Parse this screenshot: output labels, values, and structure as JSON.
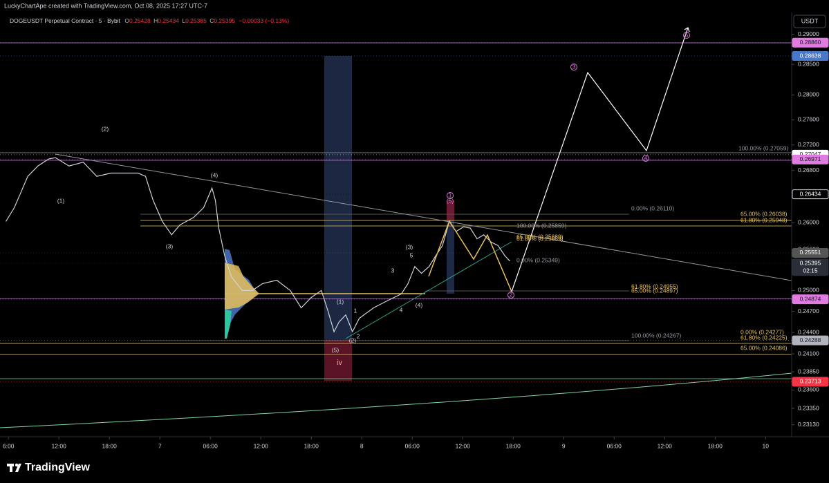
{
  "header": {
    "credit": "LuckyChartApe created with TradingView.com, Oct 08, 2025 17:27 UTC-7",
    "symbol": "DOGEUSDT Perpetual Contract · 5 · Bybit",
    "ohlc": [
      {
        "key": "O",
        "value": "0.25428"
      },
      {
        "key": "H",
        "value": "0.25434"
      },
      {
        "key": "L",
        "value": "0.25385"
      },
      {
        "key": "C",
        "value": "0.25395"
      }
    ],
    "change": "−0.00033 (−0.13%)"
  },
  "chart_data": {
    "type": "line",
    "currency": "USDT",
    "log_scale": true,
    "ylim": [
      0.2297,
      0.2937
    ],
    "xlim": [
      5.0,
      99.1
    ],
    "yticks": [
      {
        "value": 0.29,
        "label": "0.29000"
      },
      {
        "value": 0.285,
        "label": "0.28500"
      },
      {
        "value": 0.28,
        "label": "0.28000"
      },
      {
        "value": 0.276,
        "label": "0.27600"
      },
      {
        "value": 0.272,
        "label": "0.27200"
      },
      {
        "value": 0.268,
        "label": "0.26800"
      },
      {
        "value": 0.26,
        "label": "0.26000"
      },
      {
        "value": 0.256,
        "label": "0.25600"
      },
      {
        "value": 0.25,
        "label": "0.25000"
      },
      {
        "value": 0.247,
        "label": "0.24700"
      },
      {
        "value": 0.244,
        "label": "0.24400"
      },
      {
        "value": 0.241,
        "label": "0.24100"
      },
      {
        "value": 0.2385,
        "label": "0.23850"
      },
      {
        "value": 0.236,
        "label": "0.23600"
      },
      {
        "value": 0.2335,
        "label": "0.23350"
      },
      {
        "value": 0.2313,
        "label": "0.23130"
      }
    ],
    "xticks": [
      {
        "value": 6,
        "label": "6:00"
      },
      {
        "value": 12,
        "label": "12:00"
      },
      {
        "value": 18,
        "label": "18:00"
      },
      {
        "value": 24,
        "label": "7"
      },
      {
        "value": 30,
        "label": "06:00"
      },
      {
        "value": 36,
        "label": "12:00"
      },
      {
        "value": 42,
        "label": "18:00"
      },
      {
        "value": 48,
        "label": "8"
      },
      {
        "value": 54,
        "label": "06:00"
      },
      {
        "value": 60,
        "label": "12:00"
      },
      {
        "value": 66,
        "label": "18:00"
      },
      {
        "value": 72,
        "label": "9"
      },
      {
        "value": 78,
        "label": "06:00"
      },
      {
        "value": 84,
        "label": "12:00"
      },
      {
        "value": 90,
        "label": "18:00"
      },
      {
        "value": 96,
        "label": "10"
      }
    ],
    "x": [
      5.7,
      6.7,
      8.3,
      9.5,
      10.8,
      11.6,
      13.2,
      14.9,
      16.5,
      18.2,
      19.8,
      21.4,
      22.3,
      23.2,
      24.3,
      25.4,
      26.4,
      28.0,
      29.2,
      30.2,
      30.6,
      31.0,
      31.7,
      32.5,
      33.8,
      35.0,
      36.2,
      37.9,
      39.5,
      40.8,
      42.0,
      43.2,
      44.0,
      44.7,
      45.3,
      46.1,
      46.9,
      47.7,
      49.4,
      51.0,
      52.7,
      53.5,
      54.3,
      55.1,
      56.0,
      56.8,
      57.6,
      58.4,
      59.2,
      60.1,
      60.9,
      61.7,
      62.5,
      63.4,
      64.2,
      65.0,
      65.6
    ],
    "series": [
      {
        "color": "#d1d4dc",
        "values": [
          0.2602,
          0.2623,
          0.2671,
          0.2687,
          0.2698,
          0.27,
          0.2687,
          0.2693,
          0.2671,
          0.2676,
          0.2676,
          0.2676,
          0.2671,
          0.2634,
          0.2602,
          0.2582,
          0.2597,
          0.2608,
          0.2623,
          0.2653,
          0.2634,
          0.2592,
          0.2551,
          0.252,
          0.25,
          0.25,
          0.251,
          0.2515,
          0.25,
          0.2475,
          0.249,
          0.25,
          0.247,
          0.2441,
          0.2455,
          0.2465,
          0.2441,
          0.246,
          0.2475,
          0.2485,
          0.2495,
          0.251,
          0.2535,
          0.2525,
          0.2535,
          0.2551,
          0.2566,
          0.2602,
          0.2587,
          0.2594,
          0.2592,
          0.2576,
          0.2582,
          0.2571,
          0.2566,
          0.2551,
          0.2543
        ]
      }
    ],
    "price_tags": [
      {
        "value": 0.2886,
        "label": "0.28860",
        "color": "#e07be0",
        "text_color": "#131722"
      },
      {
        "value": 0.28638,
        "label": "0.28638",
        "color": "#4a78c8",
        "text_color": "#ffffff"
      },
      {
        "value": 0.27047,
        "label": "0.27047",
        "color": "#ffffff",
        "text_color": "#131722"
      },
      {
        "value": 0.26971,
        "label": "0.26971",
        "color": "#e07be0",
        "text_color": "#131722"
      },
      {
        "value": 0.26434,
        "label": "0.26434",
        "color": "#000000",
        "text_color": "#ffffff"
      },
      {
        "value": 0.25551,
        "label": "0.25551",
        "color": "#555555",
        "text_color": "#ffffff"
      },
      {
        "value": 0.25395,
        "label": "0.25395",
        "color": "#2a2e39",
        "text_color": "#ffffff",
        "countdown": "02:15"
      },
      {
        "value": 0.24874,
        "label": "0.24874",
        "color": "#e07be0",
        "text_color": "#131722"
      },
      {
        "value": 0.24288,
        "label": "0.24288",
        "color": "#b2b5be",
        "text_color": "#131722"
      },
      {
        "value": 0.23713,
        "label": "0.23713",
        "color": "#f23645",
        "text_color": "#ffffff"
      }
    ]
  },
  "fib_labels": [
    "100.00% (0.27059)",
    "0.00% (0.26110)",
    "65.00% (0.26038)",
    "61.80% (0.25948)",
    "100.00% (0.25859)",
    "65.00% (0.25689)",
    "61.80% (0.25689)",
    "0.00% (0.25349)",
    "61.80% (0.24955)",
    "65.00% (0.24897)",
    "100.00% (0.24267)",
    "0.00% (0.24277)",
    "61.80% (0.24225)",
    "65.00% (0.24086)"
  ],
  "waves": [
    "(2)",
    "(1)",
    "(4)",
    "(3)",
    "(1)",
    "(5)",
    "iv",
    "(2)",
    "1",
    "2",
    "3",
    "4",
    "(4)",
    "(3)",
    "5",
    "1",
    "(5)",
    "2",
    "3",
    "4",
    "5"
  ],
  "footer": {
    "brand": "TradingView"
  }
}
